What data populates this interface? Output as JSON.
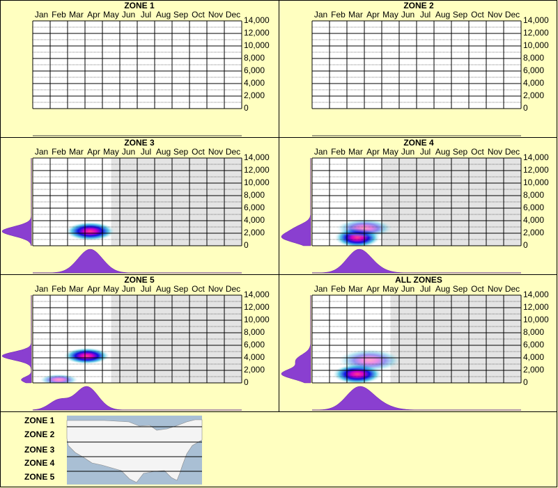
{
  "chart_data": [
    {
      "type": "heatmap",
      "title": "ZONE 1",
      "categories": [
        "Jan",
        "Feb",
        "Mar",
        "Apr",
        "May",
        "Jun",
        "Jul",
        "Aug",
        "Sep",
        "Oct",
        "Nov",
        "Dec"
      ],
      "ylim": [
        0,
        14000
      ],
      "yticks": [
        0,
        {
          "value": 2000,
          "label": "2,000"
        },
        {
          "value": 4000,
          "label": "4,000"
        },
        {
          "value": 6000,
          "label": "6,000"
        },
        {
          "value": 8000,
          "label": "8,000"
        },
        {
          "value": 10000,
          "label": "10,000"
        },
        {
          "value": 12000,
          "label": "12,000"
        },
        {
          "value": 14000,
          "label": "14,000"
        }
      ],
      "blobs": []
    },
    {
      "type": "heatmap",
      "title": "ZONE 2",
      "categories": [
        "Jan",
        "Feb",
        "Mar",
        "Apr",
        "May",
        "Jun",
        "Jul",
        "Aug",
        "Sep",
        "Oct",
        "Nov",
        "Dec"
      ],
      "ylim": [
        0,
        14000
      ],
      "yticks": [
        0,
        {
          "value": 2000,
          "label": "2,000"
        },
        {
          "value": 4000,
          "label": "4,000"
        },
        {
          "value": 6000,
          "label": "6,000"
        },
        {
          "value": 8000,
          "label": "8,000"
        },
        {
          "value": 10000,
          "label": "10,000"
        },
        {
          "value": 12000,
          "label": "12,000"
        },
        {
          "value": 14000,
          "label": "14,000"
        }
      ],
      "blobs": []
    },
    {
      "type": "heatmap",
      "title": "ZONE 3",
      "categories": [
        "Jan",
        "Feb",
        "Mar",
        "Apr",
        "May",
        "Jun",
        "Jul",
        "Aug",
        "Sep",
        "Oct",
        "Nov",
        "Dec"
      ],
      "ylim": [
        0,
        14000
      ],
      "yticks": [
        0,
        {
          "value": 2000,
          "label": "2,000"
        },
        {
          "value": 4000,
          "label": "4,000"
        },
        {
          "value": 6000,
          "label": "6,000"
        },
        {
          "value": 8000,
          "label": "8,000"
        },
        {
          "value": 10000,
          "label": "10,000"
        },
        {
          "value": 12000,
          "label": "12,000"
        },
        {
          "value": 14000,
          "label": "14,000"
        }
      ],
      "shade_from": 4.5,
      "blobs": [
        {
          "x": 3.3,
          "y": 2300,
          "w": 1.4,
          "h": 1500,
          "peak": 1
        }
      ]
    },
    {
      "type": "heatmap",
      "title": "ZONE 4",
      "categories": [
        "Jan",
        "Feb",
        "Mar",
        "Apr",
        "May",
        "Jun",
        "Jul",
        "Aug",
        "Sep",
        "Oct",
        "Nov",
        "Dec"
      ],
      "ylim": [
        0,
        14000
      ],
      "yticks": [
        0,
        {
          "value": 2000,
          "label": "2,000"
        },
        {
          "value": 4000,
          "label": "4,000"
        },
        {
          "value": 6000,
          "label": "6,000"
        },
        {
          "value": 8000,
          "label": "8,000"
        },
        {
          "value": 10000,
          "label": "10,000"
        },
        {
          "value": 12000,
          "label": "12,000"
        },
        {
          "value": 14000,
          "label": "14,000"
        }
      ],
      "shade_from": 4,
      "blobs": [
        {
          "x": 2.6,
          "y": 1300,
          "w": 1.3,
          "h": 1600,
          "peak": 1
        },
        {
          "x": 3.0,
          "y": 2800,
          "w": 1.6,
          "h": 1500,
          "peak": 0.5
        }
      ]
    },
    {
      "type": "heatmap",
      "title": "ZONE 5",
      "categories": [
        "Jan",
        "Feb",
        "Mar",
        "Apr",
        "May",
        "Jun",
        "Jul",
        "Aug",
        "Sep",
        "Oct",
        "Nov",
        "Dec"
      ],
      "ylim": [
        0,
        14000
      ],
      "yticks": [
        0,
        {
          "value": 2000,
          "label": "2,000"
        },
        {
          "value": 4000,
          "label": "4,000"
        },
        {
          "value": 6000,
          "label": "6,000"
        },
        {
          "value": 8000,
          "label": "8,000"
        },
        {
          "value": 10000,
          "label": "10,000"
        },
        {
          "value": 12000,
          "label": "12,000"
        },
        {
          "value": 14000,
          "label": "14,000"
        }
      ],
      "shade_from": 4.5,
      "blobs": [
        {
          "x": 3.1,
          "y": 4300,
          "w": 1.3,
          "h": 1300,
          "peak": 1
        },
        {
          "x": 1.5,
          "y": 500,
          "w": 1.1,
          "h": 900,
          "peak": 0.5
        }
      ]
    },
    {
      "type": "heatmap",
      "title": "ALL ZONES",
      "categories": [
        "Jan",
        "Feb",
        "Mar",
        "Apr",
        "May",
        "Jun",
        "Jul",
        "Aug",
        "Sep",
        "Oct",
        "Nov",
        "Dec"
      ],
      "ylim": [
        0,
        14000
      ],
      "yticks": [
        0,
        {
          "value": 2000,
          "label": "2,000"
        },
        {
          "value": 4000,
          "label": "4,000"
        },
        {
          "value": 6000,
          "label": "6,000"
        },
        {
          "value": 8000,
          "label": "8,000"
        },
        {
          "value": 10000,
          "label": "10,000"
        },
        {
          "value": 12000,
          "label": "12,000"
        },
        {
          "value": 14000,
          "label": "14,000"
        }
      ],
      "shade_from": 4.5,
      "blobs": [
        {
          "x": 2.6,
          "y": 1400,
          "w": 1.4,
          "h": 1600,
          "peak": 1
        },
        {
          "x": 3.3,
          "y": 3600,
          "w": 1.8,
          "h": 1800,
          "peak": 0.45
        }
      ]
    }
  ],
  "legend": {
    "labels": [
      "ZONE 1",
      "ZONE 2",
      "ZONE 3",
      "ZONE 4",
      "ZONE 5"
    ]
  }
}
